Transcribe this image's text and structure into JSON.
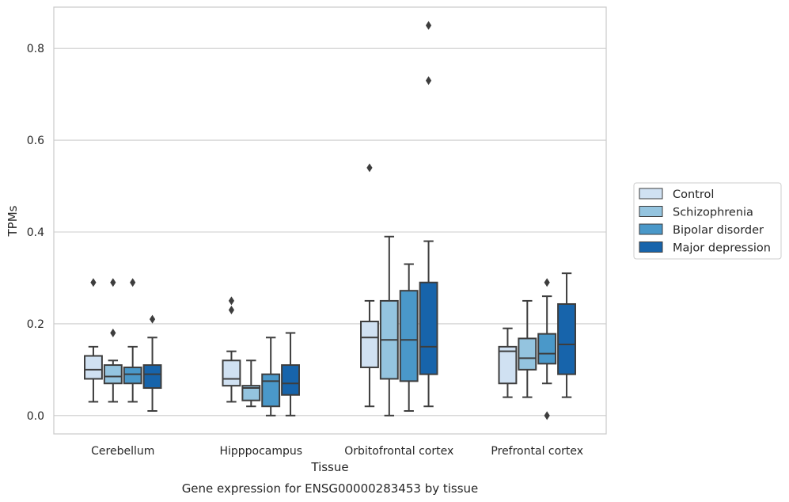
{
  "chart_data": {
    "type": "boxplot",
    "title": "",
    "caption": "Gene expression for ENSG00000283453 by tissue",
    "xlabel": "Tissue",
    "ylabel": "TPMs",
    "ylim": [
      -0.04,
      0.89
    ],
    "yticks": [
      0.0,
      0.2,
      0.4,
      0.6,
      0.8
    ],
    "ytick_labels": [
      "0.0",
      "0.2",
      "0.4",
      "0.6",
      "0.8"
    ],
    "grid": "horizontal",
    "legend_position": "right",
    "categories": [
      "Cerebellum",
      "Hipppocampus",
      "Orbitofrontal cortex",
      "Prefrontal cortex"
    ],
    "series": [
      {
        "name": "Control",
        "color": "#d0e1f2",
        "boxes": [
          {
            "whisker_low": 0.03,
            "q1": 0.08,
            "median": 0.1,
            "q3": 0.13,
            "whisker_high": 0.15,
            "outliers": [
              0.29
            ]
          },
          {
            "whisker_low": 0.03,
            "q1": 0.065,
            "median": 0.08,
            "q3": 0.12,
            "whisker_high": 0.14,
            "outliers": [
              0.23,
              0.25
            ]
          },
          {
            "whisker_low": 0.02,
            "q1": 0.105,
            "median": 0.17,
            "q3": 0.205,
            "whisker_high": 0.25,
            "outliers": [
              0.54
            ]
          },
          {
            "whisker_low": 0.04,
            "q1": 0.07,
            "median": 0.14,
            "q3": 0.15,
            "whisker_high": 0.19,
            "outliers": []
          }
        ]
      },
      {
        "name": "Schizophrenia",
        "color": "#94c4df",
        "boxes": [
          {
            "whisker_low": 0.03,
            "q1": 0.07,
            "median": 0.085,
            "q3": 0.11,
            "whisker_high": 0.12,
            "outliers": [
              0.18,
              0.29
            ]
          },
          {
            "whisker_low": 0.02,
            "q1": 0.033,
            "median": 0.06,
            "q3": 0.065,
            "whisker_high": 0.12,
            "outliers": []
          },
          {
            "whisker_low": 0.0,
            "q1": 0.08,
            "median": 0.165,
            "q3": 0.25,
            "whisker_high": 0.39,
            "outliers": []
          },
          {
            "whisker_low": 0.04,
            "q1": 0.1,
            "median": 0.125,
            "q3": 0.168,
            "whisker_high": 0.25,
            "outliers": []
          }
        ]
      },
      {
        "name": "Bipolar disorder",
        "color": "#4a98c9",
        "boxes": [
          {
            "whisker_low": 0.03,
            "q1": 0.07,
            "median": 0.09,
            "q3": 0.105,
            "whisker_high": 0.15,
            "outliers": [
              0.29
            ]
          },
          {
            "whisker_low": 0.0,
            "q1": 0.02,
            "median": 0.075,
            "q3": 0.09,
            "whisker_high": 0.17,
            "outliers": []
          },
          {
            "whisker_low": 0.01,
            "q1": 0.075,
            "median": 0.165,
            "q3": 0.272,
            "whisker_high": 0.33,
            "outliers": []
          },
          {
            "whisker_low": 0.07,
            "q1": 0.113,
            "median": 0.135,
            "q3": 0.178,
            "whisker_high": 0.26,
            "outliers": [
              0.0,
              0.29
            ]
          }
        ]
      },
      {
        "name": "Major depression",
        "color": "#1764ab",
        "boxes": [
          {
            "whisker_low": 0.01,
            "q1": 0.06,
            "median": 0.09,
            "q3": 0.11,
            "whisker_high": 0.17,
            "outliers": [
              0.21
            ]
          },
          {
            "whisker_low": 0.0,
            "q1": 0.045,
            "median": 0.07,
            "q3": 0.11,
            "whisker_high": 0.18,
            "outliers": []
          },
          {
            "whisker_low": 0.02,
            "q1": 0.09,
            "median": 0.15,
            "q3": 0.29,
            "whisker_high": 0.38,
            "outliers": [
              0.73,
              0.85
            ]
          },
          {
            "whisker_low": 0.04,
            "q1": 0.09,
            "median": 0.155,
            "q3": 0.243,
            "whisker_high": 0.31,
            "outliers": []
          }
        ]
      }
    ]
  }
}
